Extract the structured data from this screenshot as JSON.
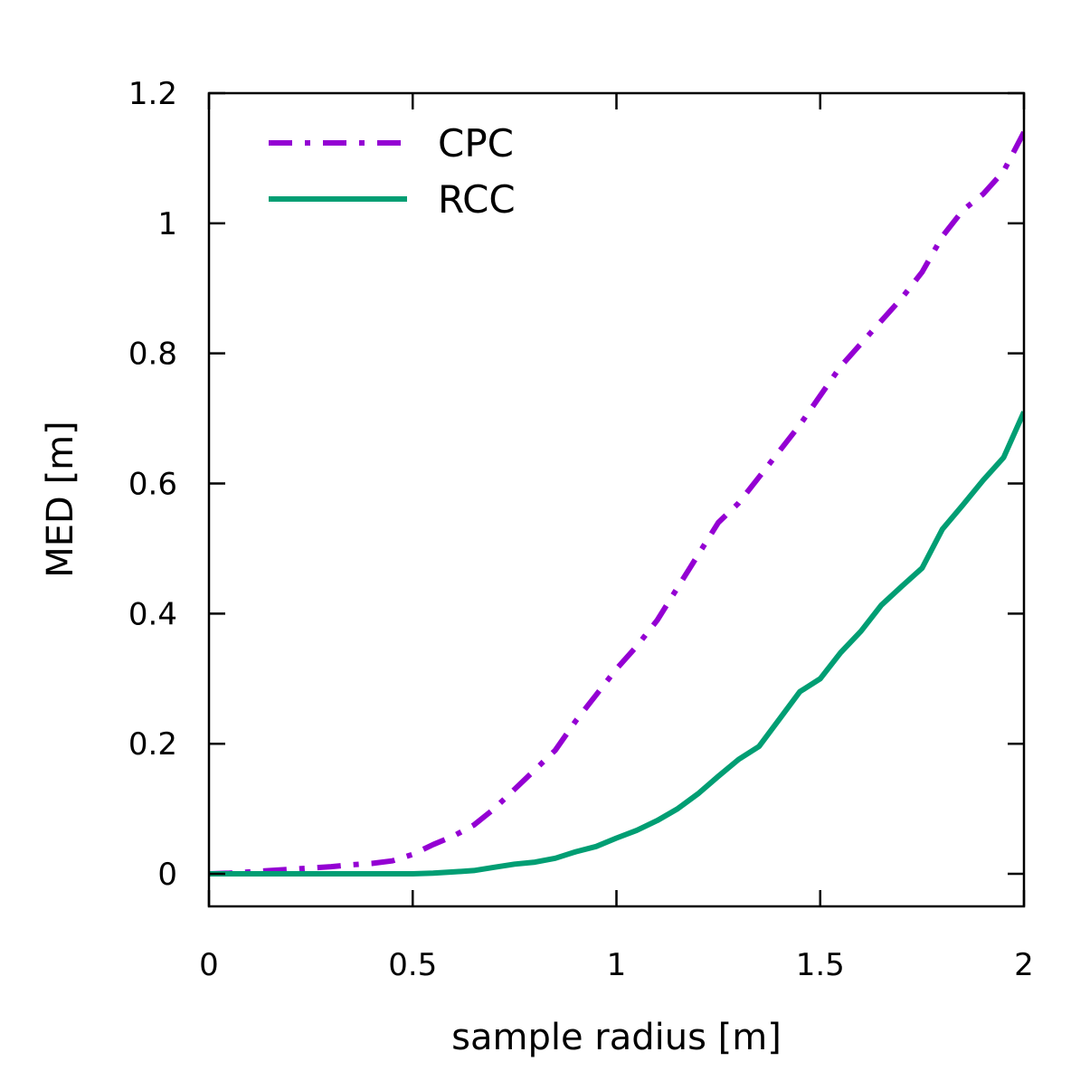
{
  "chart_data": {
    "type": "line",
    "title": "",
    "xlabel": "sample radius [m]",
    "ylabel": "MED [m]",
    "xlim": [
      0,
      2
    ],
    "ylim": [
      -0.05,
      1.2
    ],
    "xticks": [
      0,
      0.5,
      1,
      1.5,
      2
    ],
    "xtick_labels": [
      "0",
      "0.5",
      "1",
      "1.5",
      "2"
    ],
    "yticks": [
      0,
      0.2,
      0.4,
      0.6,
      0.8,
      1,
      1.2
    ],
    "ytick_labels": [
      "0",
      "0.2",
      "0.4",
      "0.6",
      "0.8",
      "1",
      "1.2"
    ],
    "grid": false,
    "legend_position": "top-left",
    "series": [
      {
        "name": "CPC",
        "color": "#9400d3",
        "style": "dash-dot",
        "x": [
          0,
          0.05,
          0.1,
          0.15,
          0.2,
          0.25,
          0.3,
          0.35,
          0.4,
          0.45,
          0.5,
          0.55,
          0.6,
          0.65,
          0.7,
          0.75,
          0.8,
          0.85,
          0.9,
          0.95,
          1.0,
          1.05,
          1.1,
          1.15,
          1.2,
          1.25,
          1.3,
          1.35,
          1.4,
          1.45,
          1.5,
          1.55,
          1.6,
          1.65,
          1.7,
          1.75,
          1.8,
          1.85,
          1.9,
          1.95,
          2.0
        ],
        "y": [
          0,
          0.001,
          0.003,
          0.005,
          0.007,
          0.009,
          0.011,
          0.014,
          0.016,
          0.02,
          0.03,
          0.045,
          0.058,
          0.075,
          0.1,
          0.13,
          0.16,
          0.19,
          0.235,
          0.275,
          0.315,
          0.35,
          0.39,
          0.44,
          0.49,
          0.54,
          0.57,
          0.61,
          0.65,
          0.69,
          0.735,
          0.78,
          0.815,
          0.85,
          0.885,
          0.925,
          0.98,
          1.02,
          1.045,
          1.08,
          1.14
        ]
      },
      {
        "name": "RCC",
        "color": "#009e73",
        "style": "solid",
        "x": [
          0,
          0.05,
          0.1,
          0.15,
          0.2,
          0.25,
          0.3,
          0.35,
          0.4,
          0.45,
          0.5,
          0.55,
          0.6,
          0.65,
          0.7,
          0.75,
          0.8,
          0.85,
          0.9,
          0.95,
          1.0,
          1.05,
          1.1,
          1.15,
          1.2,
          1.25,
          1.3,
          1.35,
          1.4,
          1.45,
          1.5,
          1.55,
          1.6,
          1.65,
          1.7,
          1.75,
          1.8,
          1.85,
          1.9,
          1.95,
          2.0
        ],
        "y": [
          0,
          0,
          0,
          0,
          0,
          0,
          0,
          0,
          0,
          0,
          0,
          0.001,
          0.003,
          0.005,
          0.01,
          0.015,
          0.018,
          0.024,
          0.034,
          0.042,
          0.055,
          0.067,
          0.082,
          0.1,
          0.123,
          0.15,
          0.176,
          0.196,
          0.238,
          0.28,
          0.3,
          0.34,
          0.373,
          0.413,
          0.442,
          0.47,
          0.53,
          0.567,
          0.605,
          0.64,
          0.71
        ]
      }
    ]
  }
}
